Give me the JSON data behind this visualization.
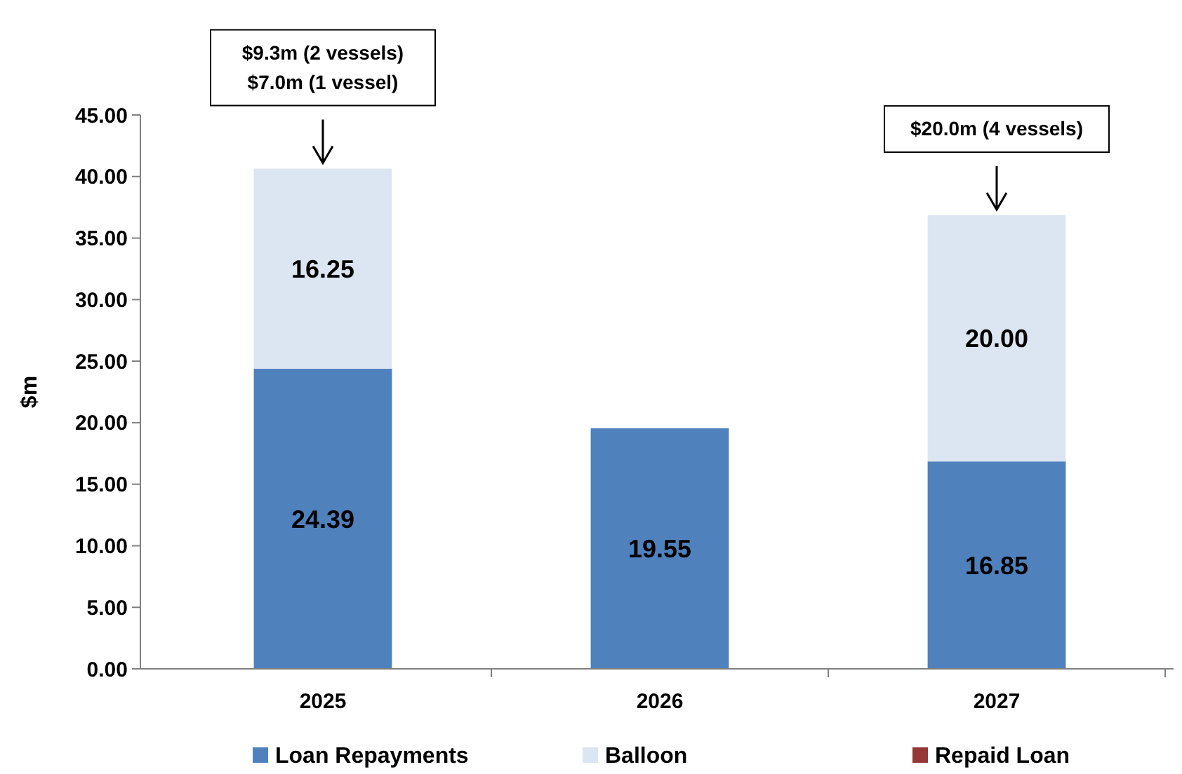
{
  "chart_data": {
    "type": "bar",
    "stacked": true,
    "ylabel": "$m",
    "categories": [
      "2025",
      "2026",
      "2027"
    ],
    "series": [
      {
        "name": "Loan Repayments",
        "color": "#4f81bd",
        "values": [
          24.39,
          19.55,
          16.85
        ],
        "value_labels": [
          "24.39",
          "19.55",
          "16.85"
        ]
      },
      {
        "name": "Balloon",
        "color": "#dce6f2",
        "values": [
          16.25,
          null,
          20.0
        ],
        "value_labels": [
          "16.25",
          null,
          "20.00"
        ]
      },
      {
        "name": "Repaid Loan",
        "color": "#953735",
        "values": [
          null,
          null,
          null
        ]
      }
    ],
    "ylim": [
      0,
      45
    ],
    "yticks": [
      {
        "value": 0,
        "label": "0.00"
      },
      {
        "value": 5,
        "label": "5.00"
      },
      {
        "value": 10,
        "label": "10.00"
      },
      {
        "value": 15,
        "label": "15.00"
      },
      {
        "value": 20,
        "label": "20.00"
      },
      {
        "value": 25,
        "label": "25.00"
      },
      {
        "value": 30,
        "label": "30.00"
      },
      {
        "value": 35,
        "label": "35.00"
      },
      {
        "value": 40,
        "label": "40.00"
      },
      {
        "value": 45,
        "label": "45.00"
      }
    ],
    "grid": false,
    "legend": "bottom",
    "annotations": [
      "$9.3m (2 vessels)\n$7.0m (1 vessel)",
      "$20.0m (4 vessels)"
    ]
  }
}
